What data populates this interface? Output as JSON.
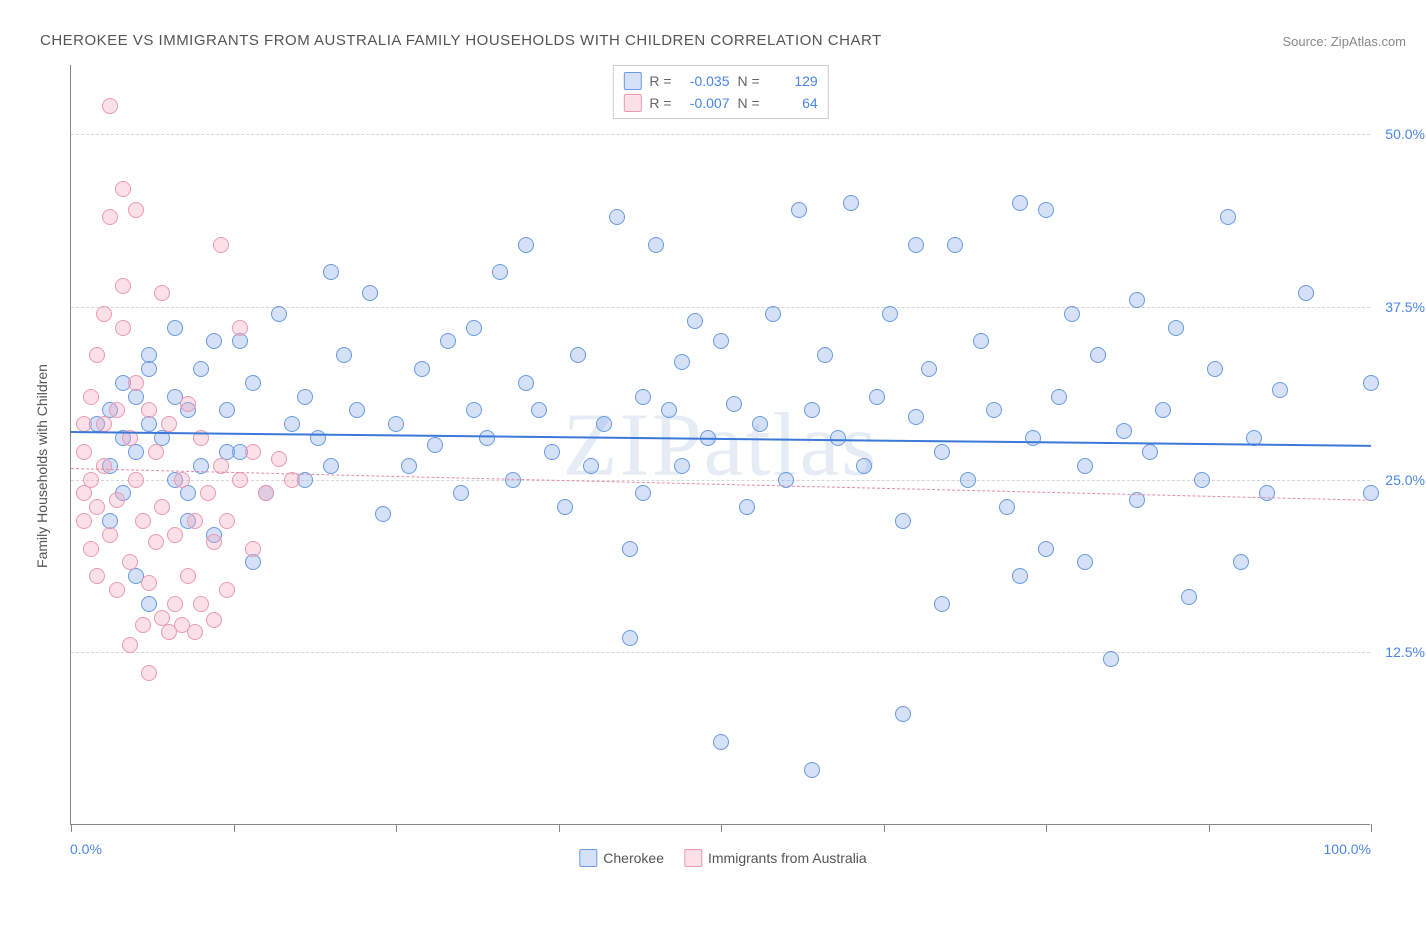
{
  "title": "CHEROKEE VS IMMIGRANTS FROM AUSTRALIA FAMILY HOUSEHOLDS WITH CHILDREN CORRELATION CHART",
  "source": "Source: ZipAtlas.com",
  "watermark": "ZIPatlas",
  "ylabel": "Family Households with Children",
  "chart": {
    "type": "scatter",
    "xlim": [
      0,
      100
    ],
    "ylim": [
      0,
      55
    ],
    "yticks": [
      12.5,
      25.0,
      37.5,
      50.0
    ],
    "ytick_labels": [
      "12.5%",
      "25.0%",
      "37.5%",
      "50.0%"
    ],
    "xticks": [
      0,
      12.5,
      25,
      37.5,
      50,
      62.5,
      75,
      87.5,
      100
    ],
    "xmin_label": "0.0%",
    "xmax_label": "100.0%",
    "background_color": "#ffffff",
    "grid_color": "#d5d5d5",
    "point_radius": 8,
    "point_border_width": 1.5
  },
  "series": [
    {
      "name": "Cherokee",
      "fill": "rgba(131,170,233,0.35)",
      "stroke": "#6a9ae0",
      "trend_color": "#3b78d8",
      "trend_dash": "solid",
      "trend_width": 2.5,
      "trend_y0": 28.5,
      "trend_y1": 27.5,
      "R": "-0.035",
      "N": "129",
      "points": [
        [
          2,
          29
        ],
        [
          3,
          30
        ],
        [
          3,
          26
        ],
        [
          4,
          32
        ],
        [
          4,
          28
        ],
        [
          4,
          24
        ],
        [
          5,
          27
        ],
        [
          5,
          31
        ],
        [
          6,
          29
        ],
        [
          6,
          33
        ],
        [
          8,
          36
        ],
        [
          8,
          25
        ],
        [
          9,
          22
        ],
        [
          9,
          30
        ],
        [
          10,
          26
        ],
        [
          11,
          35
        ],
        [
          12,
          30
        ],
        [
          13,
          27
        ],
        [
          14,
          19
        ],
        [
          14,
          32
        ],
        [
          15,
          24
        ],
        [
          16,
          37
        ],
        [
          17,
          29
        ],
        [
          18,
          25
        ],
        [
          18,
          31
        ],
        [
          19,
          28
        ],
        [
          20,
          26
        ],
        [
          21,
          34
        ],
        [
          22,
          30
        ],
        [
          23,
          38.5
        ],
        [
          24,
          22.5
        ],
        [
          25,
          29
        ],
        [
          26,
          26
        ],
        [
          27,
          33
        ],
        [
          28,
          27.5
        ],
        [
          29,
          35
        ],
        [
          30,
          24
        ],
        [
          31,
          36
        ],
        [
          31,
          30
        ],
        [
          32,
          28
        ],
        [
          33,
          40
        ],
        [
          34,
          25
        ],
        [
          35,
          32
        ],
        [
          36,
          30
        ],
        [
          37,
          27
        ],
        [
          38,
          23
        ],
        [
          39,
          34
        ],
        [
          40,
          26
        ],
        [
          41,
          29
        ],
        [
          42,
          44
        ],
        [
          43,
          13.5
        ],
        [
          43,
          20
        ],
        [
          44,
          31
        ],
        [
          44,
          24
        ],
        [
          45,
          42
        ],
        [
          46,
          30
        ],
        [
          47,
          33.5
        ],
        [
          47,
          26
        ],
        [
          48,
          36.5
        ],
        [
          49,
          28
        ],
        [
          50,
          35
        ],
        [
          51,
          30.5
        ],
        [
          52,
          23
        ],
        [
          53,
          29
        ],
        [
          54,
          37
        ],
        [
          55,
          25
        ],
        [
          56,
          44.5
        ],
        [
          57,
          4
        ],
        [
          57,
          30
        ],
        [
          58,
          34
        ],
        [
          59,
          28
        ],
        [
          60,
          45
        ],
        [
          61,
          26
        ],
        [
          62,
          31
        ],
        [
          63,
          37
        ],
        [
          64,
          8
        ],
        [
          64,
          22
        ],
        [
          65,
          29.5
        ],
        [
          66,
          33
        ],
        [
          67,
          16
        ],
        [
          67,
          27
        ],
        [
          68,
          42
        ],
        [
          69,
          25
        ],
        [
          70,
          35
        ],
        [
          71,
          30
        ],
        [
          72,
          23
        ],
        [
          73,
          45
        ],
        [
          73,
          18
        ],
        [
          74,
          28
        ],
        [
          75,
          44.5
        ],
        [
          76,
          31
        ],
        [
          77,
          37
        ],
        [
          78,
          19
        ],
        [
          78,
          26
        ],
        [
          79,
          34
        ],
        [
          80,
          12
        ],
        [
          81,
          28.5
        ],
        [
          82,
          38
        ],
        [
          82,
          23.5
        ],
        [
          83,
          27
        ],
        [
          84,
          30
        ],
        [
          85,
          36
        ],
        [
          86,
          16.5
        ],
        [
          87,
          25
        ],
        [
          88,
          33
        ],
        [
          89,
          44
        ],
        [
          90,
          19
        ],
        [
          91,
          28
        ],
        [
          92,
          24
        ],
        [
          93,
          31.5
        ],
        [
          95,
          38.5
        ],
        [
          100,
          32
        ],
        [
          3,
          22
        ],
        [
          5,
          18
        ],
        [
          6,
          16
        ],
        [
          6,
          34
        ],
        [
          7,
          28
        ],
        [
          8,
          31
        ],
        [
          9,
          24
        ],
        [
          10,
          33
        ],
        [
          11,
          21
        ],
        [
          12,
          27
        ],
        [
          13,
          35
        ],
        [
          20,
          40
        ],
        [
          35,
          42
        ],
        [
          50,
          6
        ],
        [
          65,
          42
        ],
        [
          75,
          20
        ],
        [
          100,
          24
        ]
      ]
    },
    {
      "name": "Immigrants from Australia",
      "fill": "rgba(245,165,190,0.35)",
      "stroke": "#e99ab3",
      "trend_color": "#e28ca8",
      "trend_dash": "dashed",
      "trend_width": 1.5,
      "trend_y0": 25.8,
      "trend_y1": 23.5,
      "R": "-0.007",
      "N": "64",
      "points": [
        [
          1,
          29
        ],
        [
          1,
          27
        ],
        [
          1,
          24
        ],
        [
          1,
          22
        ],
        [
          1.5,
          31
        ],
        [
          1.5,
          25
        ],
        [
          1.5,
          20
        ],
        [
          2,
          34
        ],
        [
          2,
          23
        ],
        [
          2,
          18
        ],
        [
          2.5,
          37
        ],
        [
          2.5,
          29
        ],
        [
          2.5,
          26
        ],
        [
          3,
          44
        ],
        [
          3,
          21
        ],
        [
          3,
          52
        ],
        [
          3.5,
          30
        ],
        [
          3.5,
          23.5
        ],
        [
          3.5,
          17
        ],
        [
          4,
          36
        ],
        [
          4,
          46
        ],
        [
          4,
          39
        ],
        [
          4.5,
          28
        ],
        [
          4.5,
          19
        ],
        [
          4.5,
          13
        ],
        [
          5,
          44.5
        ],
        [
          5,
          32
        ],
        [
          5,
          25
        ],
        [
          5.5,
          22
        ],
        [
          5.5,
          14.5
        ],
        [
          6,
          30
        ],
        [
          6,
          17.5
        ],
        [
          6,
          11
        ],
        [
          6.5,
          27
        ],
        [
          6.5,
          20.5
        ],
        [
          7,
          38.5
        ],
        [
          7,
          23
        ],
        [
          7,
          15
        ],
        [
          7.5,
          14
        ],
        [
          7.5,
          29
        ],
        [
          8,
          21
        ],
        [
          8,
          16
        ],
        [
          8.5,
          25
        ],
        [
          8.5,
          14.5
        ],
        [
          9,
          30.5
        ],
        [
          9,
          18
        ],
        [
          9.5,
          22
        ],
        [
          9.5,
          14
        ],
        [
          10,
          28
        ],
        [
          10,
          16
        ],
        [
          10.5,
          24
        ],
        [
          11,
          20.5
        ],
        [
          11,
          14.8
        ],
        [
          11.5,
          42
        ],
        [
          11.5,
          26
        ],
        [
          12,
          22
        ],
        [
          12,
          17
        ],
        [
          13,
          36
        ],
        [
          13,
          25
        ],
        [
          14,
          27
        ],
        [
          14,
          20
        ],
        [
          15,
          24
        ],
        [
          16,
          26.5
        ],
        [
          17,
          25
        ]
      ]
    }
  ],
  "legend": {
    "series1_label": "Cherokee",
    "series2_label": "Immigrants from Australia",
    "R_label": "R =",
    "N_label": "N ="
  }
}
